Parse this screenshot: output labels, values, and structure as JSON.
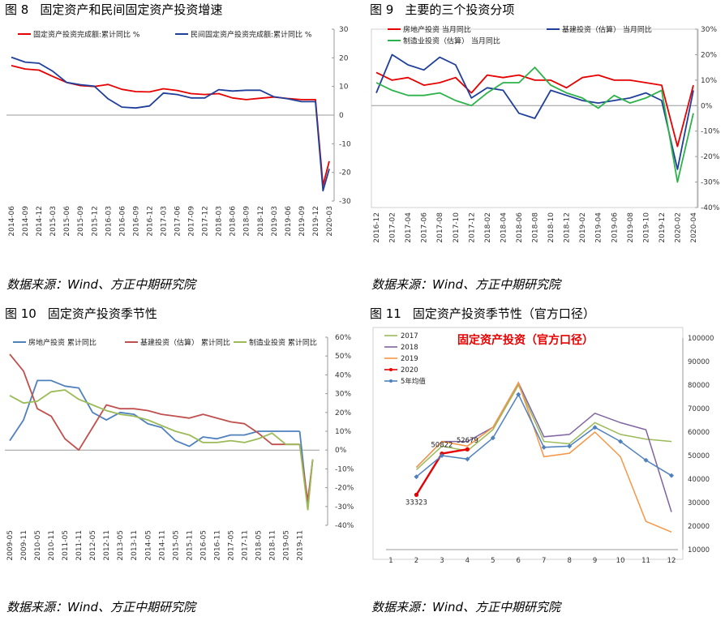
{
  "panels": [
    {
      "fig_label": "图 8",
      "title": "固定资产和民间固定资产投资增速",
      "source": "数据来源：Wind、方正中期研究院"
    },
    {
      "fig_label": "图 9",
      "title": "主要的三个投资分项",
      "source": "数据来源：Wind、方正中期研究院"
    },
    {
      "fig_label": "图 10",
      "title": "固定资产投资季节性",
      "source": "数据来源：Wind、方正中期研究院"
    },
    {
      "fig_label": "图 11",
      "title": "固定资产投资季节性（官方口径）",
      "source": "数据来源：Wind、方正中期研究院"
    }
  ],
  "chart_data": [
    {
      "type": "line",
      "ylim": [
        -30,
        30
      ],
      "yticks": [
        "30",
        "20",
        "10",
        "0",
        "-10",
        "-20",
        "-30"
      ],
      "categories": [
        "2014-06",
        "2014-09",
        "2014-12",
        "2015-03",
        "2015-06",
        "2015-09",
        "2015-12",
        "2016-03",
        "2016-06",
        "2016-09",
        "2016-12",
        "2017-03",
        "2017-06",
        "2017-09",
        "2017-12",
        "2018-03",
        "2018-06",
        "2018-09",
        "2018-12",
        "2019-03",
        "2019-06",
        "2019-09",
        "2019-12",
        "2020-03"
      ],
      "series": [
        {
          "name": "固定资产投资完成额:累计同比  %",
          "color": "#e60000",
          "values": [
            17.3,
            16.1,
            15.7,
            13.5,
            11.4,
            10.3,
            10.0,
            10.7,
            9.0,
            8.2,
            8.1,
            9.2,
            8.6,
            7.5,
            7.2,
            7.5,
            6.0,
            5.4,
            5.9,
            6.3,
            5.8,
            5.4,
            5.4,
            -16.1
          ]
        },
        {
          "name": "民间固定资产投资完成额:累计同比  %",
          "color": "#1f3f9a",
          "values": [
            20.2,
            18.5,
            18.1,
            15.3,
            11.4,
            10.6,
            10.1,
            5.7,
            2.8,
            2.5,
            3.2,
            7.7,
            7.2,
            6.0,
            6.0,
            8.9,
            8.4,
            8.7,
            8.7,
            6.4,
            5.7,
            4.7,
            4.7,
            -18.8
          ]
        }
      ],
      "annotations": [
        {
          "x": "2020-02",
          "y": -24.5,
          "series": 0
        },
        {
          "x": "2020-02",
          "y": -26.4,
          "series": 1
        }
      ]
    },
    {
      "type": "line",
      "ylim": [
        -40,
        30
      ],
      "yticks": [
        "30%",
        "20%",
        "10%",
        "0%",
        "-10%",
        "-20%",
        "-30%",
        "-40%"
      ],
      "categories": [
        "2016-12",
        "2017-02",
        "2017-04",
        "2017-06",
        "2017-08",
        "2017-10",
        "2017-12",
        "2018-02",
        "2018-04",
        "2018-06",
        "2018-08",
        "2018-10",
        "2018-12",
        "2019-02",
        "2019-04",
        "2019-06",
        "2019-08",
        "2019-10",
        "2019-12",
        "2020-02",
        "2020-04"
      ],
      "series": [
        {
          "name": "房地产投资  当月同比",
          "color": "#e60000",
          "values": [
            13,
            10,
            11,
            8,
            9,
            11,
            5,
            12,
            11,
            12,
            10,
            10,
            7,
            11,
            12,
            10,
            10,
            9,
            8,
            -16,
            8
          ]
        },
        {
          "name": "基建投资（估算）  当月同比",
          "color": "#1f3f9a",
          "values": [
            5,
            20,
            16,
            14,
            19,
            16,
            3,
            7,
            6,
            -3,
            -5,
            6,
            4,
            2,
            1,
            2,
            3,
            5,
            2,
            -25,
            6
          ]
        },
        {
          "name": "制造业投资（估算）  当月同比",
          "color": "#2db24a",
          "values": [
            9,
            6,
            4,
            4,
            5,
            2,
            0,
            5,
            9,
            9,
            15,
            8,
            5,
            3,
            -1,
            4,
            1,
            3,
            6,
            -30,
            -3
          ]
        }
      ]
    },
    {
      "type": "line",
      "ylim": [
        -40,
        60
      ],
      "yticks": [
        "60%",
        "50%",
        "40%",
        "30%",
        "20%",
        "10%",
        "0%",
        "-10%",
        "-20%",
        "-30%",
        "-40%"
      ],
      "categories": [
        "2009-05",
        "2009-11",
        "2010-05",
        "2010-11",
        "2011-05",
        "2011-11",
        "2012-05",
        "2012-11",
        "2013-05",
        "2013-11",
        "2014-05",
        "2014-11",
        "2015-05",
        "2015-11",
        "2016-05",
        "2016-11",
        "2017-05",
        "2017-11",
        "2018-05",
        "2018-11",
        "2019-05",
        "2019-11"
      ],
      "series": [
        {
          "name": "房地产投资  累计同比",
          "color": "#4f81bd",
          "values": [
            5,
            16,
            37,
            37,
            34,
            33,
            20,
            16,
            20,
            19,
            14,
            12,
            5,
            2,
            7,
            6,
            8,
            8,
            10,
            10,
            10,
            10
          ]
        },
        {
          "name": "基建投资（估算）  累计同比",
          "color": "#c0504d",
          "values": [
            51,
            42,
            22,
            18,
            6,
            0,
            12,
            24,
            22,
            22,
            21,
            19,
            18,
            17,
            19,
            17,
            15,
            14,
            9,
            3,
            3,
            3
          ]
        },
        {
          "name": "制造业投资  累计同比",
          "color": "#9bbb59",
          "values": [
            29,
            25,
            26,
            31,
            32,
            27,
            24,
            21,
            19,
            18,
            16,
            13,
            10,
            8,
            4,
            4,
            5,
            4,
            6,
            9,
            3,
            3
          ]
        }
      ],
      "annotations": [
        {
          "x": "2020-02",
          "y": -30
        },
        {
          "x": "2020-02",
          "y": -27
        },
        {
          "x": "2020-02",
          "y": -32
        }
      ]
    },
    {
      "type": "line",
      "title": "固定资产投资（官方口径）",
      "ylim": [
        10000,
        100000
      ],
      "yticks": [
        "100000",
        "90000",
        "80000",
        "70000",
        "60000",
        "50000",
        "40000",
        "30000",
        "20000",
        "10000"
      ],
      "categories": [
        "1",
        "2",
        "3",
        "4",
        "5",
        "6",
        "7",
        "8",
        "9",
        "10",
        "11",
        "12"
      ],
      "series": [
        {
          "name": "2017",
          "color": "#9bbb59",
          "values": [
            null,
            44000,
            54000,
            52000,
            61000,
            80000,
            56000,
            55000,
            64000,
            59000,
            57000,
            56000
          ]
        },
        {
          "name": "2018",
          "color": "#8064a2",
          "values": [
            null,
            45000,
            56000,
            56000,
            62000,
            81000,
            58000,
            59000,
            68000,
            64000,
            61000,
            26000
          ]
        },
        {
          "name": "2019",
          "color": "#f79646",
          "values": [
            null,
            45000,
            56000,
            54000,
            62000,
            81000,
            49500,
            51000,
            60000,
            49500,
            22000,
            17500
          ]
        },
        {
          "name": "2020",
          "color": "#e60000",
          "values": [
            null,
            33323,
            50822,
            52679,
            null,
            null,
            null,
            null,
            null,
            null,
            null,
            null
          ]
        },
        {
          "name": "5年均值",
          "color": "#4f81bd",
          "values": [
            null,
            41000,
            50000,
            48500,
            57500,
            76000,
            53500,
            54000,
            62000,
            56000,
            48000,
            41500
          ]
        }
      ],
      "data_labels": [
        {
          "x": "2",
          "text": "33323"
        },
        {
          "x": "3",
          "text": "50822"
        },
        {
          "x": "4",
          "text": "52679"
        }
      ]
    }
  ]
}
